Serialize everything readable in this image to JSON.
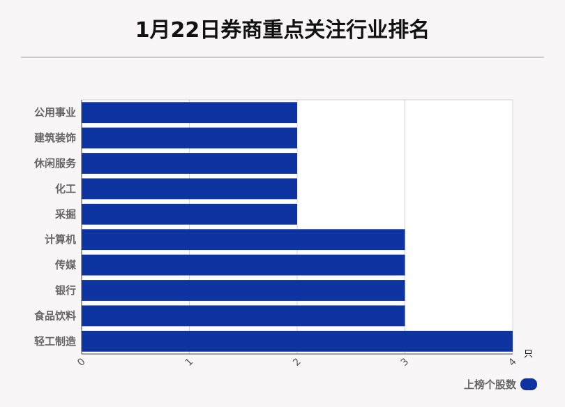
{
  "title": "1月22日券商重点关注行业排名",
  "chart_data": {
    "type": "bar",
    "orientation": "horizontal",
    "title": "1月22日券商重点关注行业排名",
    "categories": [
      "公用事业",
      "建筑装饰",
      "休闲服务",
      "化工",
      "采掘",
      "计算机",
      "传媒",
      "银行",
      "食品饮料",
      "轻工制造"
    ],
    "series": [
      {
        "name": "上榜个股数",
        "values": [
          2,
          2,
          2,
          2,
          2,
          3,
          3,
          3,
          3,
          4
        ],
        "color": "#0d34a0"
      }
    ],
    "xlim": [
      0,
      4
    ],
    "xticks": [
      "0",
      "1",
      "2",
      "3",
      "4"
    ],
    "xunit": "只",
    "grid": true,
    "legend_position": "bottom-right"
  }
}
